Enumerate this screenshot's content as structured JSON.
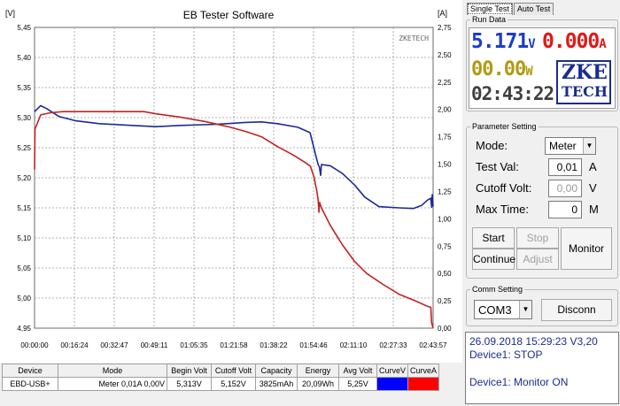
{
  "window": {
    "title": "EB Tester Software",
    "watermark": "ZKETECH"
  },
  "chart_data": {
    "type": "line",
    "title": "EB Tester Software",
    "ylabel_left": "[V]",
    "ylabel_right": "[A]",
    "ylim_left": [
      4.95,
      5.45
    ],
    "ylim_right": [
      0,
      2.75
    ],
    "yticks_left": [
      "5,45",
      "5,40",
      "5,35",
      "5,30",
      "5,25",
      "5,20",
      "5,15",
      "5,10",
      "5,05",
      "5,00",
      "4,95"
    ],
    "yticks_right": [
      "2,75",
      "2,50",
      "2,25",
      "2,00",
      "1,75",
      "1,50",
      "1,25",
      "1,00",
      "0,75",
      "0,50",
      "0,25",
      "0,00"
    ],
    "xticks": [
      "00:00:00",
      "00:16:24",
      "00:32:47",
      "00:49:11",
      "01:05:35",
      "01:21:58",
      "01:38:22",
      "01:54:46",
      "02:11:10",
      "02:27:33",
      "02:43:57"
    ],
    "xlim_seconds": [
      0,
      9837
    ],
    "grid": true,
    "series": [
      {
        "name": "CurveV",
        "axis": "left",
        "color": "#1c2a96",
        "points": [
          [
            0,
            5.31
          ],
          [
            150,
            5.32
          ],
          [
            300,
            5.315
          ],
          [
            600,
            5.302
          ],
          [
            1000,
            5.295
          ],
          [
            1600,
            5.29
          ],
          [
            2400,
            5.287
          ],
          [
            3000,
            5.285
          ],
          [
            3600,
            5.287
          ],
          [
            4500,
            5.289
          ],
          [
            5200,
            5.292
          ],
          [
            5600,
            5.293
          ],
          [
            6000,
            5.29
          ],
          [
            6500,
            5.284
          ],
          [
            6800,
            5.275
          ],
          [
            6930,
            5.24
          ],
          [
            7000,
            5.222
          ],
          [
            7030,
            5.218
          ],
          [
            7060,
            5.204
          ],
          [
            7080,
            5.222
          ],
          [
            7300,
            5.22
          ],
          [
            7600,
            5.207
          ],
          [
            7900,
            5.188
          ],
          [
            8150,
            5.168
          ],
          [
            8500,
            5.152
          ],
          [
            9000,
            5.15
          ],
          [
            9350,
            5.149
          ],
          [
            9550,
            5.154
          ],
          [
            9700,
            5.163
          ],
          [
            9780,
            5.166
          ],
          [
            9800,
            5.151
          ],
          [
            9815,
            5.172
          ],
          [
            9837,
            5.152
          ]
        ]
      },
      {
        "name": "CurveA",
        "axis": "right",
        "color": "#c42121",
        "points": [
          [
            0,
            1.45
          ],
          [
            10,
            1.82
          ],
          [
            150,
            1.95
          ],
          [
            400,
            1.97
          ],
          [
            700,
            1.98
          ],
          [
            1200,
            1.98
          ],
          [
            2000,
            1.98
          ],
          [
            2700,
            1.98
          ],
          [
            3000,
            1.96
          ],
          [
            3600,
            1.93
          ],
          [
            4200,
            1.89
          ],
          [
            4800,
            1.84
          ],
          [
            5200,
            1.8
          ],
          [
            5600,
            1.75
          ],
          [
            6000,
            1.66
          ],
          [
            6400,
            1.58
          ],
          [
            6700,
            1.51
          ],
          [
            6810,
            1.48
          ],
          [
            6900,
            1.38
          ],
          [
            6970,
            1.25
          ],
          [
            7000,
            1.17
          ],
          [
            7020,
            1.06
          ],
          [
            7035,
            1.15
          ],
          [
            7080,
            1.1
          ],
          [
            7300,
            0.94
          ],
          [
            7600,
            0.76
          ],
          [
            7900,
            0.61
          ],
          [
            8200,
            0.5
          ],
          [
            8600,
            0.4
          ],
          [
            9000,
            0.31
          ],
          [
            9400,
            0.25
          ],
          [
            9700,
            0.2
          ],
          [
            9780,
            0.19
          ],
          [
            9800,
            0.05
          ],
          [
            9837,
            0.0
          ]
        ]
      }
    ]
  },
  "tabs": [
    "Single Test",
    "Auto Test"
  ],
  "run_data": {
    "title": "Run Data",
    "voltage": "5.171",
    "voltage_unit": "V",
    "current": "0.000",
    "current_unit": "A",
    "power": "00.00",
    "power_unit": "W",
    "time": "02:43:22",
    "logo_top": "ZKE",
    "logo_bottom": "TECH",
    "colors": {
      "voltage": "#1c3ec8",
      "current": "#e01818",
      "power": "#b09a12",
      "time": "#404040"
    }
  },
  "params": {
    "title": "Parameter Setting",
    "mode_label": "Mode:",
    "mode_value": "Meter",
    "testval_label": "Test Val:",
    "testval_value": "0,01",
    "testval_unit": "A",
    "cutoff_label": "Cutoff Volt:",
    "cutoff_value": "0,00",
    "cutoff_unit": "V",
    "maxtime_label": "Max Time:",
    "maxtime_value": "0",
    "maxtime_unit": "M",
    "start": "Start",
    "stop": "Stop",
    "continue": "Continue",
    "adjust": "Adjust",
    "monitor": "Monitor"
  },
  "comm": {
    "title": "Comm Setting",
    "port": "COM3",
    "disconnect": "Disconn"
  },
  "status": {
    "line1": "26.09.2018 15:29:23  V3,20",
    "line2": "Device1: STOP",
    "line3": "Device1: Monitor ON"
  },
  "table": {
    "headers": [
      "Device",
      "Mode",
      "Begin Volt",
      "Cutoff Volt",
      "Capacity",
      "Energy",
      "Avg Volt",
      "CurveV",
      "CurveA"
    ],
    "row": [
      "EBD-USB+",
      "Meter  0,01A  0,00V",
      "5,313V",
      "5,152V",
      "3825mAh",
      "20,09Wh",
      "5,25V",
      "",
      ""
    ],
    "curve_colors": [
      "#0000ff",
      "#ff0000"
    ]
  }
}
